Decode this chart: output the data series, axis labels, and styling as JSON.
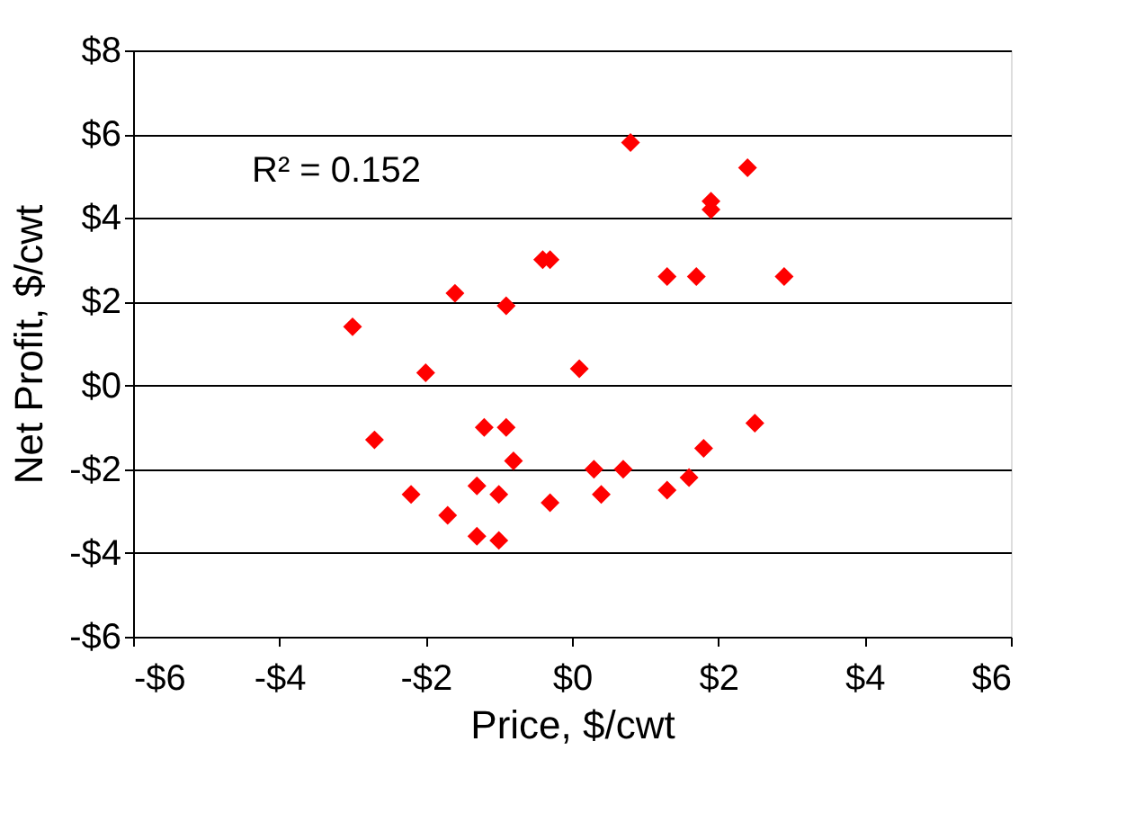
{
  "chart_data": {
    "type": "scatter",
    "xlabel": "Price, $/cwt",
    "ylabel": "Net Profit,  $/cwt",
    "annotations": [
      "R² = 0.152"
    ],
    "x": [
      0.8,
      -0.4,
      -0.3,
      -1.6,
      -0.9,
      -3.0,
      -2.0,
      0.1,
      -2.7,
      -1.2,
      -0.9,
      -0.8,
      0.3,
      0.7,
      -2.2,
      -1.3,
      -1.0,
      0.4,
      -0.3,
      -1.7,
      -1.3,
      -1.0,
      2.4,
      1.9,
      1.9,
      1.3,
      1.7,
      2.9,
      2.5,
      1.8,
      1.6,
      1.3
    ],
    "series": [
      {
        "color": "#ff0000",
        "values": [
          5.8,
          3.0,
          3.0,
          2.2,
          1.9,
          1.4,
          0.3,
          0.4,
          -1.3,
          -1.0,
          -1.0,
          -1.8,
          -2.0,
          -2.0,
          -2.6,
          -2.4,
          -2.6,
          -2.6,
          -2.8,
          -3.1,
          -3.6,
          -3.7,
          5.2,
          4.4,
          4.2,
          2.6,
          2.6,
          2.6,
          -0.9,
          -1.5,
          -2.2,
          -2.5
        ]
      }
    ],
    "marker": "diamond",
    "grid": "y",
    "xlim": [
      -6,
      6
    ],
    "xticks": [
      {
        "value": -6,
        "label": "-$6"
      },
      {
        "value": -4,
        "label": "-$4"
      },
      {
        "value": -2,
        "label": "-$2"
      },
      {
        "value": 0,
        "label": "$0"
      },
      {
        "value": 2,
        "label": "$2"
      },
      {
        "value": 4,
        "label": "$4"
      },
      {
        "value": 6,
        "label": "$6"
      }
    ],
    "ylim": [
      -6,
      8
    ],
    "yticks": [
      {
        "value": -6,
        "label": "-$6"
      },
      {
        "value": -4,
        "label": "-$4"
      },
      {
        "value": -2,
        "label": "-$2"
      },
      {
        "value": 0,
        "label": "$0"
      },
      {
        "value": 2,
        "label": "$2"
      },
      {
        "value": 4,
        "label": "$4"
      },
      {
        "value": 6,
        "label": "$6"
      },
      {
        "value": 8,
        "label": "$8"
      }
    ]
  }
}
